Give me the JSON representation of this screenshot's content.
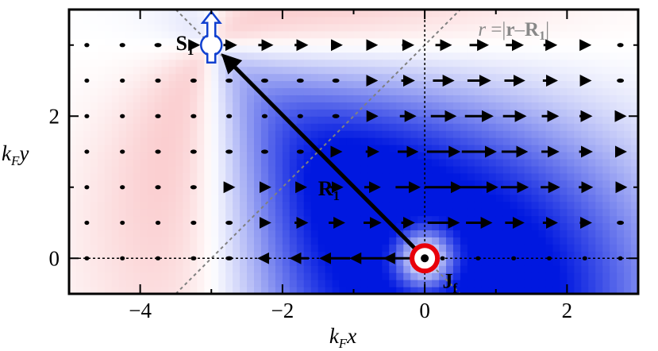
{
  "chart_data": {
    "type": "vector-field-heatmap",
    "xlim": [
      -5,
      3
    ],
    "ylim": [
      -0.5,
      3.5
    ],
    "xticks": [
      -4,
      -2,
      0,
      2
    ],
    "yticks": [
      0,
      2
    ],
    "xtick_labels": [
      "−4",
      "−2",
      "0",
      "2"
    ],
    "ytick_labels": [
      "0",
      "2"
    ],
    "xlabel": {
      "main": "k",
      "sub": "F",
      "var": "x"
    },
    "ylabel": {
      "main": "k",
      "sub": "F",
      "var": "y"
    },
    "colors": {
      "positive": "#e8000a",
      "negative": "#0018e0",
      "zero": "#ffffff",
      "ring": "#e8000a",
      "spin": "#1040d0",
      "dashed": "#808080"
    },
    "spin_position": [
      -3,
      3
    ],
    "current_position": [
      0,
      0
    ],
    "grid": false,
    "annotations": {
      "S1": {
        "main": "S",
        "sub": "1",
        "x": -3.5,
        "y": 3
      },
      "R1": {
        "main": "R",
        "sub": "1",
        "x": -1.5,
        "y": 0.95
      },
      "Jf": {
        "main": "J",
        "sub": "f",
        "x": 0.25,
        "y": -0.35
      },
      "r_label": {
        "text_parts": [
          "r",
          " =|",
          "r",
          "–",
          "R",
          "1",
          "|"
        ],
        "x": 0.75,
        "y": 3.2
      }
    },
    "arrow_rows_y": [
      0,
      0.5,
      1,
      1.5,
      2,
      2.5,
      3
    ],
    "arrow_cols_x": [
      -4.75,
      -4.25,
      -3.75,
      -3.25,
      -2.75,
      -2.25,
      -1.75,
      -1.25,
      -0.75,
      -0.25,
      0.25,
      0.75,
      1.25,
      1.75,
      2.25,
      2.75
    ],
    "arrow_x_components": [
      [
        -0.06,
        -0.06,
        -0.07,
        -0.08,
        -0.1,
        -0.14,
        -0.24,
        -0.4,
        -0.55,
        -0.6,
        0.06,
        0.05,
        0.05,
        0.04,
        0.04,
        0.03
      ],
      [
        0.05,
        0.06,
        0.07,
        0.08,
        0.1,
        0.12,
        0.16,
        0.2,
        0.22,
        0.16,
        0.42,
        0.34,
        0.24,
        0.18,
        0.14,
        0.1
      ],
      [
        0.06,
        0.07,
        0.08,
        0.09,
        0.11,
        0.12,
        0.13,
        0.15,
        0.2,
        0.32,
        0.5,
        0.5,
        0.36,
        0.24,
        0.17,
        0.13
      ],
      [
        0.06,
        0.07,
        0.08,
        0.09,
        0.1,
        0.1,
        0.1,
        0.12,
        0.16,
        0.26,
        0.44,
        0.46,
        0.34,
        0.22,
        0.16,
        0.12
      ],
      [
        0.06,
        0.07,
        0.08,
        0.08,
        0.08,
        0.08,
        0.08,
        0.1,
        0.13,
        0.2,
        0.33,
        0.37,
        0.3,
        0.21,
        0.15,
        0.11
      ],
      [
        0.06,
        0.07,
        0.08,
        0.09,
        0.1,
        0.1,
        0.1,
        0.1,
        0.12,
        0.16,
        0.27,
        0.3,
        0.26,
        0.18,
        0.13,
        0.1
      ],
      [
        0.07,
        0.08,
        0.1,
        0.12,
        0.16,
        0.18,
        0.16,
        0.13,
        0.12,
        0.14,
        0.2,
        0.24,
        0.22,
        0.16,
        0.12,
        0.09
      ]
    ]
  }
}
